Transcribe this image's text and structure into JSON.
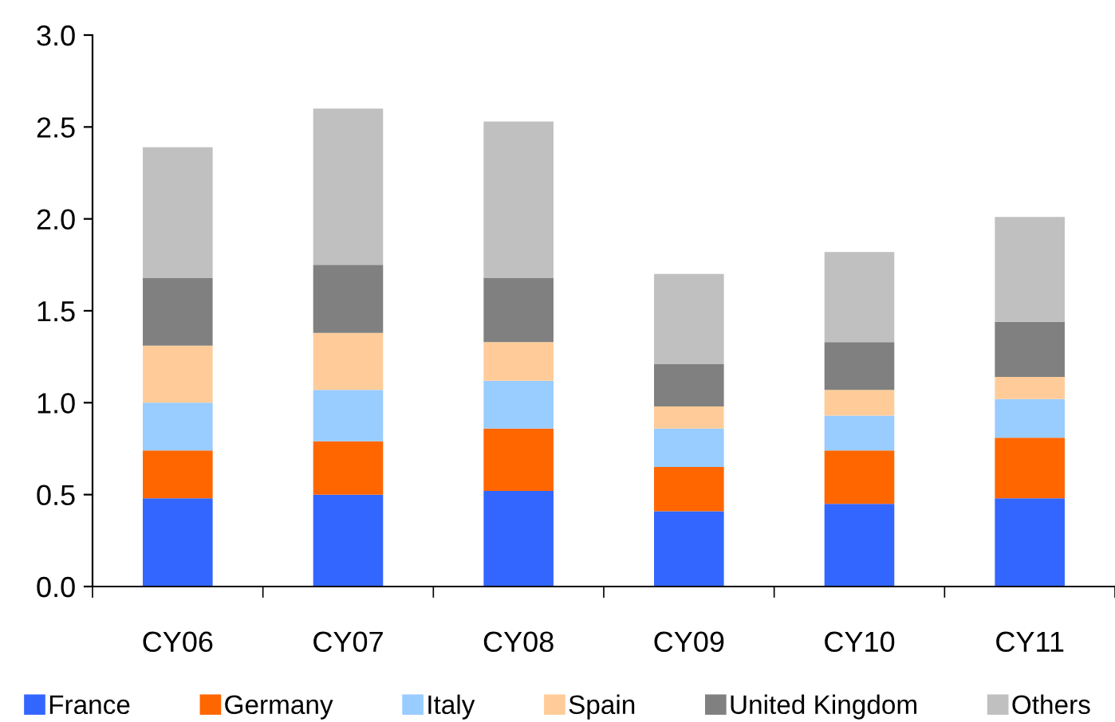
{
  "chart_data": {
    "type": "bar",
    "stacked": true,
    "categories": [
      "CY06",
      "CY07",
      "CY08",
      "CY09",
      "CY10",
      "CY11"
    ],
    "series": [
      {
        "name": "France",
        "color": "#3366ff",
        "values": [
          0.48,
          0.5,
          0.52,
          0.41,
          0.45,
          0.48
        ]
      },
      {
        "name": "Germany",
        "color": "#ff6600",
        "values": [
          0.26,
          0.29,
          0.34,
          0.24,
          0.29,
          0.33
        ]
      },
      {
        "name": "Italy",
        "color": "#99ccff",
        "values": [
          0.26,
          0.28,
          0.26,
          0.21,
          0.19,
          0.21
        ]
      },
      {
        "name": "Spain",
        "color": "#ffcc99",
        "values": [
          0.31,
          0.31,
          0.21,
          0.12,
          0.14,
          0.12
        ]
      },
      {
        "name": "United Kingdom",
        "color": "#808080",
        "values": [
          0.37,
          0.37,
          0.35,
          0.23,
          0.26,
          0.3
        ]
      },
      {
        "name": "Others",
        "color": "#c0c0c0",
        "values": [
          0.71,
          0.85,
          0.85,
          0.49,
          0.49,
          0.57
        ]
      }
    ],
    "ylim": [
      0,
      3.0
    ],
    "yticks": [
      {
        "value": 0,
        "label": "0.0"
      },
      {
        "value": 0.5,
        "label": "0.5"
      },
      {
        "value": 1.0,
        "label": "1.0"
      },
      {
        "value": 1.5,
        "label": "1.5"
      },
      {
        "value": 2.0,
        "label": "2.0"
      },
      {
        "value": 2.5,
        "label": "2.5"
      },
      {
        "value": 3.0,
        "label": "3.0"
      }
    ],
    "grid": false,
    "legend": "bottom"
  }
}
